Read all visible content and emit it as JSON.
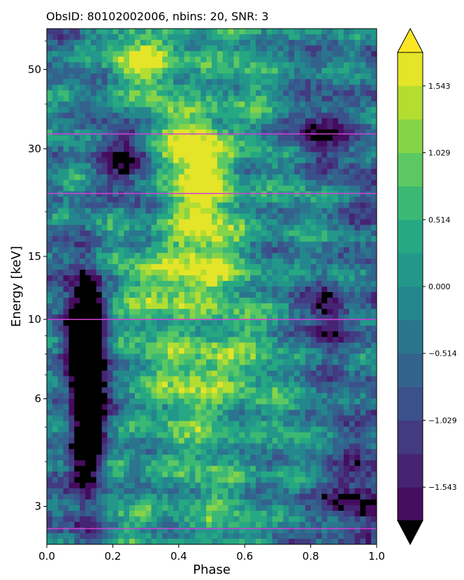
{
  "chart_data": {
    "type": "heatmap",
    "title": "ObsID: 80102002006, nbins: 20, SNR: 3",
    "xlabel": "Phase",
    "ylabel": "Energy [keV]",
    "xlim": [
      0.0,
      1.0
    ],
    "ylim": [
      2.35,
      65
    ],
    "y_scale": "log",
    "x_ticks": [
      {
        "value": 0.0,
        "label": "0.0"
      },
      {
        "value": 0.2,
        "label": "0.2"
      },
      {
        "value": 0.4,
        "label": "0.4"
      },
      {
        "value": 0.6,
        "label": "0.6"
      },
      {
        "value": 0.8,
        "label": "0.8"
      },
      {
        "value": 1.0,
        "label": "1.0"
      }
    ],
    "y_ticks": [
      {
        "value": 3,
        "label": "3"
      },
      {
        "value": 6,
        "label": "6"
      },
      {
        "value": 10,
        "label": "10"
      },
      {
        "value": 15,
        "label": "15"
      },
      {
        "value": 30,
        "label": "30"
      },
      {
        "value": 50,
        "label": "50"
      }
    ],
    "reference_lines_keV": [
      2.6,
      33,
      22.5,
      10
    ],
    "reference_line_color": "#d042d8",
    "colormap": "viridis",
    "colorbar": {
      "min": -1.8,
      "max": 1.8,
      "extend": "both",
      "under_color": "#000000",
      "ticks": [
        {
          "value": 1.543,
          "label": "1.543"
        },
        {
          "value": 1.029,
          "label": "1.029"
        },
        {
          "value": 0.514,
          "label": "0.514"
        },
        {
          "value": 0.0,
          "label": "0.000"
        },
        {
          "value": -0.514,
          "label": "−0.514"
        },
        {
          "value": -1.029,
          "label": "−1.029"
        },
        {
          "value": -1.543,
          "label": "−1.543"
        }
      ],
      "levels": 14
    },
    "features": [
      {
        "phase": 0.13,
        "energy": 6.5,
        "value": -2.0,
        "width": 0.05,
        "height": 0.35
      },
      {
        "phase": 0.12,
        "energy": 5.5,
        "value": -1.9,
        "width": 0.05,
        "height": 0.25
      },
      {
        "phase": 0.11,
        "energy": 9.2,
        "value": -1.7,
        "width": 0.06,
        "height": 0.15
      },
      {
        "phase": 0.24,
        "energy": 28,
        "value": -1.5,
        "width": 0.1,
        "height": 0.12
      },
      {
        "phase": 0.85,
        "energy": 10.5,
        "value": -1.6,
        "width": 0.06,
        "height": 0.08
      },
      {
        "phase": 0.9,
        "energy": 3.1,
        "value": -1.3,
        "width": 0.1,
        "height": 0.1
      },
      {
        "phase": 0.8,
        "energy": 33,
        "value": -1.2,
        "width": 0.12,
        "height": 0.08
      },
      {
        "phase": 0.45,
        "energy": 30,
        "value": 1.6,
        "width": 0.1,
        "height": 0.1
      },
      {
        "phase": 0.48,
        "energy": 20,
        "value": 1.2,
        "width": 0.1,
        "height": 0.15
      },
      {
        "phase": 0.4,
        "energy": 13,
        "value": 1.3,
        "width": 0.12,
        "height": 0.1
      },
      {
        "phase": 0.5,
        "energy": 7,
        "value": 1.1,
        "width": 0.12,
        "height": 0.12
      },
      {
        "phase": 0.3,
        "energy": 53,
        "value": 1.2,
        "width": 0.1,
        "height": 0.08
      }
    ]
  }
}
